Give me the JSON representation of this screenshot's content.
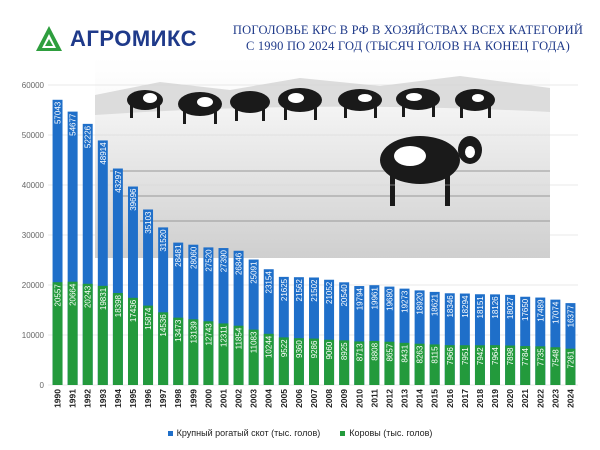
{
  "brand": {
    "name": "АГРОМИКС"
  },
  "title_lines": [
    "ПОГОЛОВЬЕ КРС В РФ В ХОЗЯЙСТВАХ ВСЕХ КАТЕГОРИЙ",
    "С 1990 ПО 2024 ГОД (ТЫСЯЧ ГОЛОВ НА КОНЕЦ ГОДА)"
  ],
  "colors": {
    "cattle": "#1f6fc9",
    "cows": "#239a3c",
    "title": "#1f3a8a"
  },
  "chart_data": {
    "type": "bar",
    "title": "ПОГОЛОВЬЕ КРС В РФ В ХОЗЯЙСТВАХ ВСЕХ КАТЕГОРИЙ С 1990 ПО 2024 ГОД (ТЫСЯЧ ГОЛОВ НА КОНЕЦ ГОДА)",
    "xlabel": "",
    "ylabel": "",
    "ylim": [
      0,
      60000
    ],
    "yticks": [
      "0",
      "10000",
      "20000",
      "30000",
      "40000",
      "50000",
      "60000"
    ],
    "legend_position": "bottom",
    "categories": [
      "1990",
      "1991",
      "1992",
      "1993",
      "1994",
      "1995",
      "1996",
      "1997",
      "1998",
      "1999",
      "2000",
      "2001",
      "2002",
      "2003",
      "2004",
      "2005",
      "2006",
      "2007",
      "2008",
      "2009",
      "2010",
      "2011",
      "2012",
      "2013",
      "2014",
      "2015",
      "2016",
      "2017",
      "2018",
      "2019",
      "2020",
      "2021",
      "2022",
      "2023",
      "2024"
    ],
    "series": [
      {
        "name": "Крупный рогатый скот (тыс. голов)",
        "color": "#1f6fc9",
        "values": [
          57043,
          54677,
          52226,
          48914,
          43297,
          39696,
          35103,
          31520,
          28481,
          28060,
          27520,
          27390,
          26846,
          25091,
          23154,
          21625,
          21562,
          21502,
          21052,
          20540,
          19794,
          19961,
          19680,
          19273,
          18920,
          18621,
          18346,
          18294,
          18151,
          18126,
          18027,
          17650,
          17489,
          17074,
          16377
        ]
      },
      {
        "name": "Коровы (тыс. голов)",
        "color": "#239a3c",
        "values": [
          20557,
          20664,
          20243,
          19831,
          18398,
          17436,
          15874,
          14536,
          13473,
          13139,
          12743,
          12311,
          11854,
          11083,
          10244,
          9522,
          9360,
          9286,
          9060,
          8925,
          8713,
          8808,
          8657,
          8431,
          8263,
          8115,
          7966,
          7951,
          7942,
          7964,
          7898,
          7784,
          7735,
          7548,
          7261
        ]
      }
    ]
  }
}
